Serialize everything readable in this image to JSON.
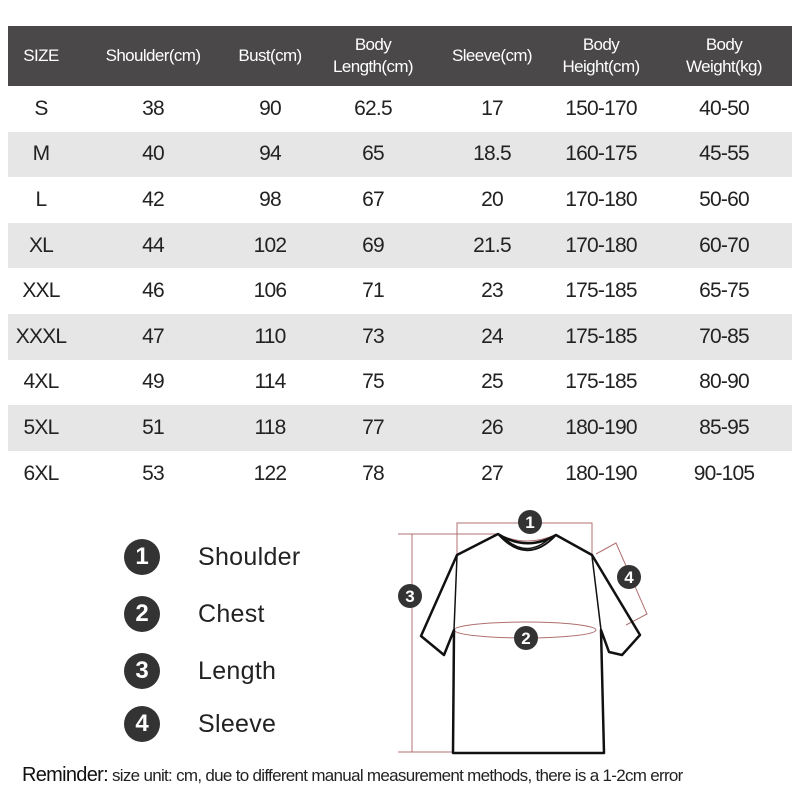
{
  "table": {
    "headers": [
      [
        "SIZE"
      ],
      [
        "Shoulder(cm)"
      ],
      [
        "Bust(cm)"
      ],
      [
        "Body",
        "Length(cm)"
      ],
      [
        "Sleeve(cm)"
      ],
      [
        "Body",
        "Height(cm)"
      ],
      [
        "Body",
        "Weight(kg)"
      ]
    ],
    "rows": [
      [
        "S",
        "38",
        "90",
        "62.5",
        "17",
        "150-170",
        "40-50"
      ],
      [
        "M",
        "40",
        "94",
        "65",
        "18.5",
        "160-175",
        "45-55"
      ],
      [
        "L",
        "42",
        "98",
        "67",
        "20",
        "170-180",
        "50-60"
      ],
      [
        "XL",
        "44",
        "102",
        "69",
        "21.5",
        "170-180",
        "60-70"
      ],
      [
        "XXL",
        "46",
        "106",
        "71",
        "23",
        "175-185",
        "65-75"
      ],
      [
        "XXXL",
        "47",
        "110",
        "73",
        "24",
        "175-185",
        "70-85"
      ],
      [
        "4XL",
        "49",
        "114",
        "75",
        "25",
        "175-185",
        "80-90"
      ],
      [
        "5XL",
        "51",
        "118",
        "77",
        "26",
        "180-190",
        "85-95"
      ],
      [
        "6XL",
        "53",
        "122",
        "78",
        "27",
        "180-190",
        "90-105"
      ]
    ]
  },
  "legend": [
    {
      "num": "1",
      "label": "Shoulder"
    },
    {
      "num": "2",
      "label": "Chest"
    },
    {
      "num": "3",
      "label": "Length"
    },
    {
      "num": "4",
      "label": "Sleeve"
    }
  ],
  "diagram": {
    "markers": [
      "1",
      "2",
      "3",
      "4"
    ],
    "measure_line_color": "#b07070",
    "outline_color": "#111111"
  },
  "reminder": {
    "label": "Reminder:",
    "text": " size unit: cm, due to different manual measurement methods, there is a 1-2cm error"
  },
  "colors": {
    "header_bg": "#4a4848",
    "alt_row_bg": "#e6e6e6"
  }
}
